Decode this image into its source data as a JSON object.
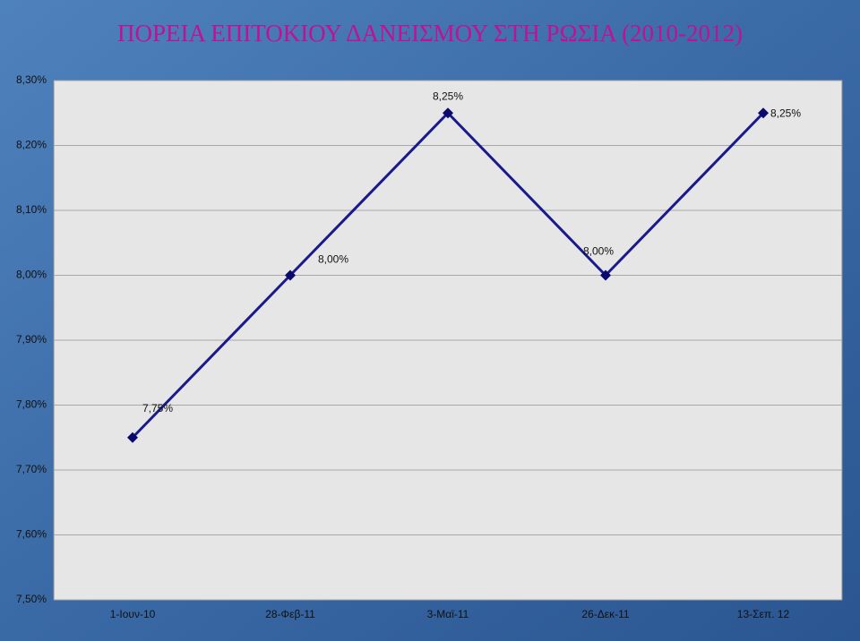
{
  "chart_data": {
    "type": "line",
    "title": "ΠΟΡΕΙΑ ΕΠΙΤΟΚΙΟΥ ΔΑΝΕΙΣΜΟΥ ΣΤΗ ΡΩΣΙΑ (2010-2012)",
    "categories": [
      "1-Ιουν-10",
      "28-Φεβ-11",
      "3-Μαϊ-11",
      "26-Δεκ-11",
      "13-Σεπ. 12"
    ],
    "values": [
      7.75,
      8.0,
      8.25,
      8.0,
      8.25
    ],
    "value_labels": [
      "7,75%",
      "8,00%",
      "8,25%",
      "8,00%",
      "8,25%"
    ],
    "color": "#1a1a8c",
    "ylim": [
      7.5,
      8.3
    ],
    "yticks": [
      {
        "value": 7.5,
        "label": "7,50%"
      },
      {
        "value": 7.6,
        "label": "7,60%"
      },
      {
        "value": 7.7,
        "label": "7,70%"
      },
      {
        "value": 7.8,
        "label": "7,80%"
      },
      {
        "value": 7.9,
        "label": "7,90%"
      },
      {
        "value": 8.0,
        "label": "8,00%"
      },
      {
        "value": 8.1,
        "label": "8,10%"
      },
      {
        "value": 8.2,
        "label": "8,20%"
      },
      {
        "value": 8.3,
        "label": "8,30%"
      }
    ],
    "grid": true
  }
}
